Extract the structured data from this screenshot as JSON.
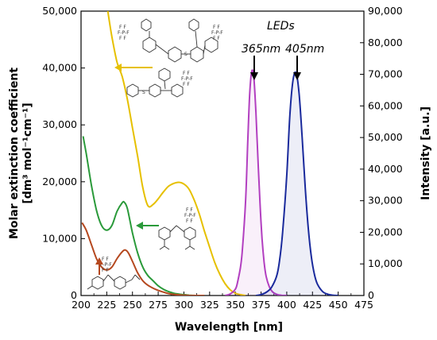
{
  "chart_data": {
    "type": "line",
    "xlabel": "Wavelength  [nm]",
    "ylabel_left_line1": "Molar extinction coefficient",
    "ylabel_left_line2": "[dm³ mol⁻¹cm⁻¹]",
    "ylabel_right": "Intensity [a.u.]",
    "xlim": [
      200,
      475
    ],
    "ylim_left": [
      0,
      50000
    ],
    "ylim_right": [
      0,
      90000
    ],
    "x_ticks": [
      "200",
      "225",
      "250",
      "275",
      "300",
      "325",
      "350",
      "375",
      "400",
      "425",
      "450",
      "475"
    ],
    "y_left_ticks": [
      "0",
      "10,000",
      "20,000",
      "30,000",
      "40,000",
      "50,000"
    ],
    "y_right_ticks": [
      "0",
      "10,000",
      "20,000",
      "30,000",
      "40,000",
      "50,000",
      "60,000",
      "70,000",
      "80,000",
      "90,000"
    ],
    "led_title": "LEDs",
    "led_labels": [
      "365nm",
      "405nm"
    ],
    "colors": {
      "yellow": "#e6c000",
      "green": "#2a9a3a",
      "red": "#b5481f",
      "violet": "#b23fc0",
      "blue": "#1a2a9c",
      "arrow_yellow": "#e6c000",
      "arrow_green": "#2a9a3a",
      "arrow_red": "#b5481f"
    },
    "series": [
      {
        "color": "yellow",
        "axis": "left",
        "x": [
          226,
          230,
          235,
          240,
          245,
          250,
          255,
          260,
          265,
          270,
          275,
          280,
          285,
          290,
          295,
          300,
          305,
          310,
          315,
          320,
          325,
          330,
          335,
          340,
          345,
          350,
          355,
          360
        ],
        "y": [
          50000,
          45500,
          41000,
          38500,
          34500,
          29500,
          24500,
          19000,
          15800,
          16000,
          17000,
          18200,
          19200,
          19700,
          19900,
          19600,
          18700,
          16800,
          14300,
          11300,
          8500,
          5800,
          3700,
          2100,
          1000,
          400,
          150,
          0
        ]
      },
      {
        "color": "green",
        "axis": "left",
        "x": [
          202,
          205,
          210,
          215,
          220,
          225,
          230,
          235,
          240,
          242,
          245,
          250,
          255,
          260,
          265,
          270,
          275,
          280,
          285,
          290,
          295,
          300,
          305,
          310,
          320
        ],
        "y": [
          28000,
          25000,
          19500,
          15000,
          12300,
          11500,
          12300,
          14800,
          16300,
          16400,
          15300,
          11000,
          7500,
          5000,
          3500,
          2600,
          1700,
          1100,
          700,
          400,
          250,
          150,
          60,
          20,
          0
        ]
      },
      {
        "color": "red",
        "axis": "left",
        "x": [
          201,
          205,
          210,
          215,
          220,
          225,
          230,
          235,
          240,
          243,
          246,
          250,
          255,
          260,
          265,
          270,
          275,
          280,
          285,
          290,
          295,
          300,
          305,
          310,
          320
        ],
        "y": [
          12800,
          11500,
          9000,
          6500,
          5000,
          4500,
          5000,
          6500,
          7700,
          8000,
          7500,
          6000,
          4000,
          2600,
          1800,
          1300,
          900,
          600,
          350,
          200,
          120,
          60,
          20,
          0,
          0
        ]
      },
      {
        "color": "violet",
        "axis": "right",
        "x": [
          340,
          345,
          350,
          352,
          355,
          357,
          360,
          362,
          364,
          366,
          368,
          370,
          372,
          374,
          376,
          378,
          380,
          383,
          386,
          390,
          395,
          400
        ],
        "y": [
          0,
          500,
          2000,
          4000,
          9000,
          15000,
          30000,
          48000,
          64000,
          71000,
          69000,
          58000,
          43000,
          29000,
          18000,
          10500,
          6000,
          2800,
          1200,
          400,
          80,
          0
        ]
      },
      {
        "color": "blue",
        "axis": "right",
        "x": [
          370,
          375,
          380,
          385,
          390,
          393,
          396,
          400,
          403,
          406,
          409,
          412,
          415,
          418,
          421,
          424,
          427,
          430,
          435,
          440,
          445,
          450
        ],
        "y": [
          0,
          300,
          1000,
          2500,
          6000,
          11000,
          20000,
          38000,
          57000,
          68000,
          70500,
          64000,
          50000,
          34000,
          21000,
          12000,
          6500,
          3500,
          1200,
          400,
          100,
          0
        ]
      }
    ]
  }
}
